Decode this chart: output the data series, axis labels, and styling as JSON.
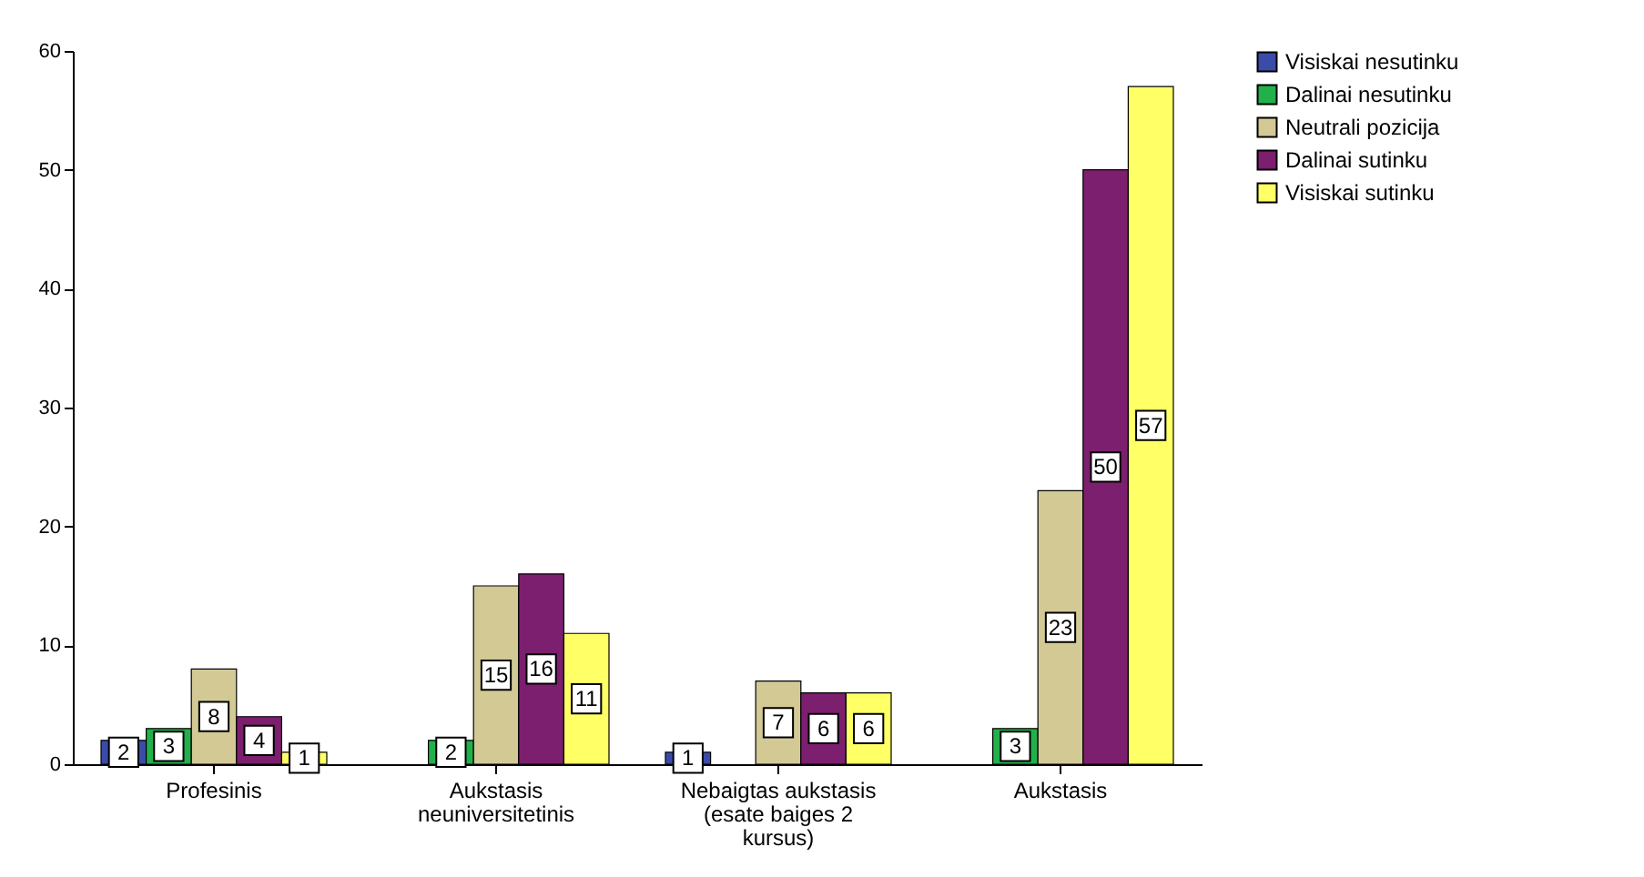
{
  "chart_data": {
    "type": "bar",
    "categories": [
      "Profesinis",
      "Aukstasis neuniversitetinis",
      "Nebaigtas aukstasis (esate baiges 2 kursus)",
      "Aukstasis"
    ],
    "series": [
      {
        "name": "Visiskai nesutinku",
        "color": "#3b4ca8",
        "values": [
          2,
          null,
          1,
          null
        ]
      },
      {
        "name": "Dalinai nesutinku",
        "color": "#22b04b",
        "values": [
          3,
          2,
          null,
          3
        ]
      },
      {
        "name": "Neutrali pozicija",
        "color": "#d2c995",
        "values": [
          8,
          15,
          7,
          23
        ]
      },
      {
        "name": "Dalinai sutinku",
        "color": "#7c1f6f",
        "values": [
          4,
          16,
          6,
          50
        ]
      },
      {
        "name": "Visiskai sutinku",
        "color": "#ffff66",
        "values": [
          1,
          11,
          6,
          57
        ]
      }
    ],
    "ylim": [
      0,
      60
    ],
    "yticks": [
      0,
      10,
      20,
      30,
      40,
      50,
      60
    ],
    "grid": false,
    "legend": "top right",
    "data_labels": true
  }
}
